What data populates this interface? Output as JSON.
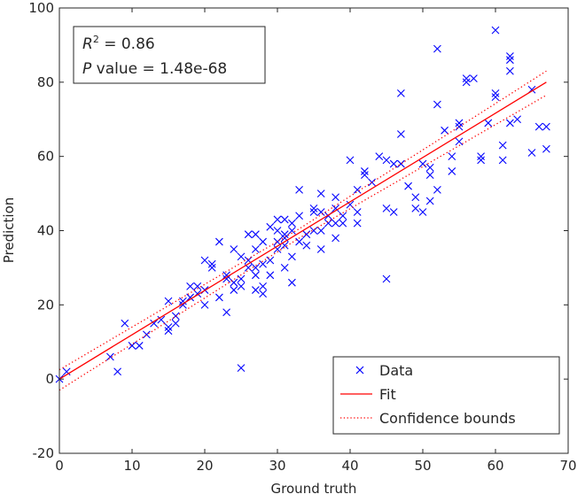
{
  "chart_data": {
    "type": "scatter",
    "xlabel": "Ground truth",
    "ylabel": "Prediction",
    "xlim": [
      0,
      70
    ],
    "ylim": [
      -20,
      100
    ],
    "xticks": [
      0,
      10,
      20,
      30,
      40,
      50,
      60,
      70
    ],
    "yticks": [
      -20,
      0,
      20,
      40,
      60,
      80,
      100
    ],
    "grid": false,
    "legend_position": "bottom-right",
    "annotation": {
      "r2_label": "R",
      "r2_sup": "2",
      "r2_value": " = 0.86",
      "p_label": "P",
      "p_value": " value = 1.48e-68"
    },
    "legend": [
      {
        "label": "Data",
        "marker": "x",
        "color": "#0000ff"
      },
      {
        "label": "Fit",
        "style": "solid",
        "color": "#ff0000"
      },
      {
        "label": "Confidence bounds",
        "style": "dotted",
        "color": "#ff0000"
      }
    ],
    "series": [
      {
        "name": "Data",
        "color": "#0000ff",
        "points": [
          [
            0,
            0
          ],
          [
            1,
            2
          ],
          [
            7,
            6
          ],
          [
            8,
            2
          ],
          [
            9,
            15
          ],
          [
            10,
            9
          ],
          [
            11,
            9
          ],
          [
            12,
            12
          ],
          [
            13,
            15
          ],
          [
            14,
            16
          ],
          [
            15,
            21
          ],
          [
            15,
            14
          ],
          [
            15,
            13
          ],
          [
            16,
            15
          ],
          [
            16,
            17
          ],
          [
            17,
            20
          ],
          [
            17,
            21
          ],
          [
            18,
            22
          ],
          [
            18,
            25
          ],
          [
            19,
            25
          ],
          [
            19,
            23
          ],
          [
            20,
            20
          ],
          [
            20,
            24
          ],
          [
            20,
            32
          ],
          [
            21,
            30
          ],
          [
            21,
            31
          ],
          [
            22,
            37
          ],
          [
            22,
            22
          ],
          [
            23,
            18
          ],
          [
            23,
            27
          ],
          [
            23,
            28
          ],
          [
            24,
            26
          ],
          [
            24,
            24
          ],
          [
            24,
            35
          ],
          [
            25,
            25
          ],
          [
            25,
            27
          ],
          [
            25,
            33
          ],
          [
            25,
            3
          ],
          [
            26,
            30
          ],
          [
            26,
            39
          ],
          [
            26,
            32
          ],
          [
            27,
            30
          ],
          [
            27,
            35
          ],
          [
            27,
            28
          ],
          [
            27,
            24
          ],
          [
            27,
            39
          ],
          [
            28,
            31
          ],
          [
            28,
            25
          ],
          [
            28,
            23
          ],
          [
            28,
            37
          ],
          [
            29,
            32
          ],
          [
            29,
            28
          ],
          [
            29,
            41
          ],
          [
            30,
            40
          ],
          [
            30,
            37
          ],
          [
            30,
            35
          ],
          [
            30,
            43
          ],
          [
            31,
            36
          ],
          [
            31,
            30
          ],
          [
            31,
            38
          ],
          [
            31,
            39
          ],
          [
            31,
            43
          ],
          [
            32,
            42
          ],
          [
            32,
            40
          ],
          [
            32,
            33
          ],
          [
            32,
            26
          ],
          [
            33,
            37
          ],
          [
            33,
            44
          ],
          [
            33,
            51
          ],
          [
            34,
            39
          ],
          [
            34,
            36
          ],
          [
            35,
            45
          ],
          [
            35,
            46
          ],
          [
            35,
            40
          ],
          [
            36,
            50
          ],
          [
            36,
            45
          ],
          [
            36,
            35
          ],
          [
            36,
            40
          ],
          [
            37,
            42
          ],
          [
            37,
            44
          ],
          [
            38,
            49
          ],
          [
            38,
            46
          ],
          [
            38,
            38
          ],
          [
            38,
            42
          ],
          [
            39,
            42
          ],
          [
            39,
            44
          ],
          [
            40,
            59
          ],
          [
            40,
            47
          ],
          [
            41,
            42
          ],
          [
            41,
            45
          ],
          [
            41,
            51
          ],
          [
            42,
            55
          ],
          [
            42,
            56
          ],
          [
            43,
            53
          ],
          [
            44,
            60
          ],
          [
            45,
            46
          ],
          [
            45,
            27
          ],
          [
            45,
            59
          ],
          [
            46,
            58
          ],
          [
            46,
            45
          ],
          [
            47,
            77
          ],
          [
            47,
            66
          ],
          [
            47,
            58
          ],
          [
            48,
            52
          ],
          [
            49,
            49
          ],
          [
            49,
            46
          ],
          [
            50,
            58
          ],
          [
            50,
            45
          ],
          [
            51,
            55
          ],
          [
            51,
            57
          ],
          [
            51,
            48
          ],
          [
            52,
            89
          ],
          [
            52,
            74
          ],
          [
            52,
            51
          ],
          [
            53,
            67
          ],
          [
            54,
            60
          ],
          [
            54,
            56
          ],
          [
            55,
            69
          ],
          [
            55,
            68
          ],
          [
            55,
            64
          ],
          [
            56,
            80
          ],
          [
            56,
            81
          ],
          [
            57,
            81
          ],
          [
            58,
            59
          ],
          [
            58,
            60
          ],
          [
            59,
            69
          ],
          [
            60,
            94
          ],
          [
            60,
            77
          ],
          [
            60,
            76
          ],
          [
            61,
            59
          ],
          [
            61,
            63
          ],
          [
            62,
            87
          ],
          [
            62,
            86
          ],
          [
            62,
            69
          ],
          [
            62,
            83
          ],
          [
            63,
            70
          ],
          [
            65,
            61
          ],
          [
            65,
            78
          ],
          [
            66,
            68
          ],
          [
            67,
            68
          ],
          [
            67,
            62
          ]
        ]
      },
      {
        "name": "Fit",
        "color": "#ff0000",
        "x": [
          0,
          67
        ],
        "y": [
          0,
          80
        ]
      },
      {
        "name": "Confidence bounds",
        "color": "#ff0000",
        "upper": {
          "x": [
            0,
            33,
            67
          ],
          "y": [
            2.5,
            40.5,
            83
          ]
        },
        "lower": {
          "x": [
            0,
            33,
            67
          ],
          "y": [
            -3,
            38,
            76.5
          ]
        }
      }
    ]
  }
}
